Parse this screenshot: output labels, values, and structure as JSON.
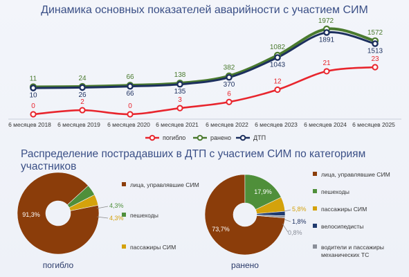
{
  "top_title": "Динамика основных показателей аварийности с участием СИМ",
  "bottom_title": "Распределение пострадавших в ДТП с участием СИМ по категориям участников",
  "colors": {
    "pogiblo": "#e8252d",
    "raneno": "#4a7a2e",
    "dtp": "#1c2f5e",
    "cat_drivers": "#8b3d0a",
    "cat_peds": "#4f8f3a",
    "cat_pass": "#d4a20c",
    "cat_cyc": "#1f3a6e",
    "cat_mech": "#8a8f99"
  },
  "chart_data": [
    {
      "type": "line",
      "title": "Динамика основных показателей аварийности с участием СИМ",
      "categories": [
        "6 месяцев 2018",
        "6 месяцев 2019",
        "6 месяцев 2020",
        "6 месяцев 2021",
        "6 месяцев 2022",
        "6 месяцев 2023",
        "6 месяцев 2024",
        "6 месяцев 2025"
      ],
      "series": [
        {
          "name": "погибло",
          "values": [
            0,
            2,
            0,
            3,
            6,
            12,
            21,
            23
          ]
        },
        {
          "name": "ранено",
          "values": [
            11,
            24,
            66,
            138,
            382,
            1082,
            1972,
            1572
          ]
        },
        {
          "name": "ДТП",
          "values": [
            10,
            26,
            66,
            135,
            370,
            1043,
            1891,
            1513
          ]
        }
      ],
      "legend": [
        "погибло",
        "ранено",
        "ДТП"
      ],
      "legend_position": "bottom",
      "grid": false
    },
    {
      "type": "pie",
      "caption": "погибло",
      "slices": [
        {
          "label": "лица, управлявшие СИМ",
          "value": 91.3,
          "text": "91,3%"
        },
        {
          "label": "пешеходы",
          "value": 4.3,
          "text": "4,3%"
        },
        {
          "label": "пассажиры СИМ",
          "value": 4.3,
          "text": "4,3%"
        }
      ]
    },
    {
      "type": "pie",
      "caption": "ранено",
      "slices": [
        {
          "label": "лица, управлявшие СИМ",
          "value": 73.7,
          "text": "73,7%"
        },
        {
          "label": "пешеходы",
          "value": 17.9,
          "text": "17,9%"
        },
        {
          "label": "пассажиры СИМ",
          "value": 5.8,
          "text": "5,8%"
        },
        {
          "label": "велосипедисты",
          "value": 1.8,
          "text": "1,8%"
        },
        {
          "label": "водители и пассажиры механических ТС",
          "value": 0.8,
          "text": "0,8%"
        }
      ]
    }
  ]
}
